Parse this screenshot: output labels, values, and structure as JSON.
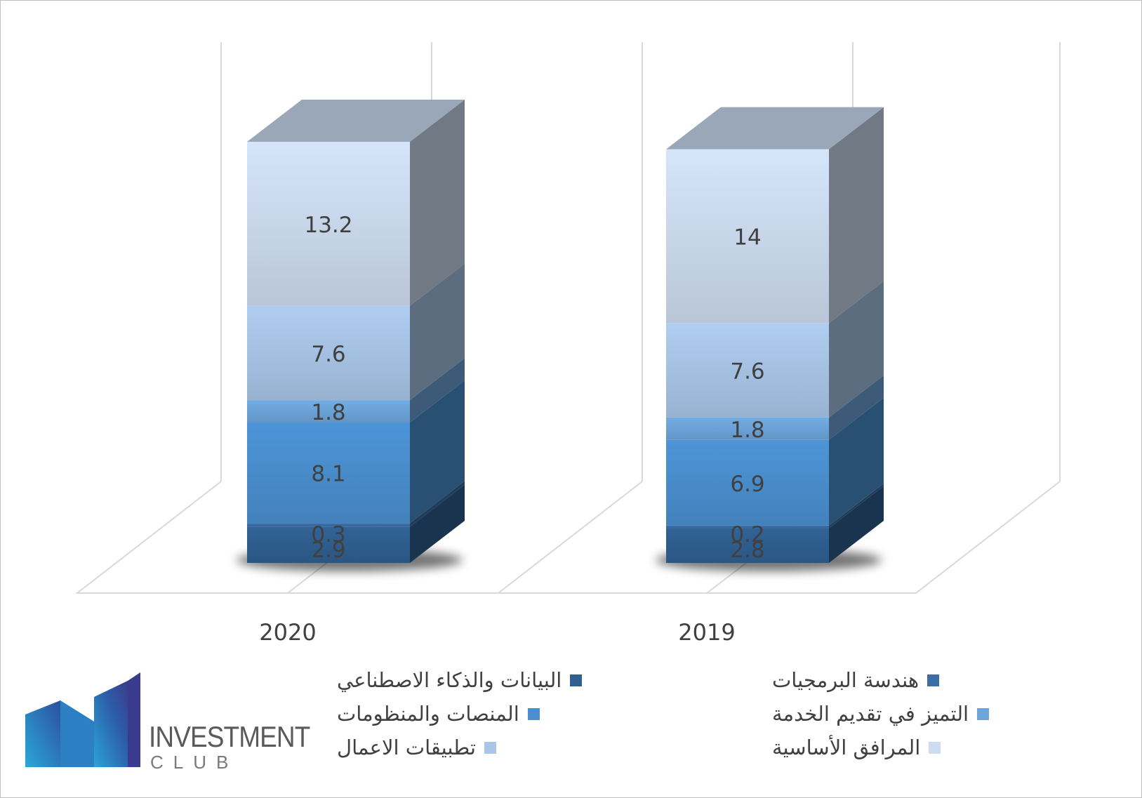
{
  "chart_data": {
    "type": "bar",
    "stacked": true,
    "three_d": true,
    "categories": [
      "2020",
      "2019"
    ],
    "series": [
      {
        "name": "البيانات والذكاء الاصطناعي",
        "values": [
          2.9,
          2.8
        ],
        "color": "#2f5f90"
      },
      {
        "name": "هندسة البرمجيات",
        "values": [
          0.3,
          0.2
        ],
        "color": "#3a6ea5"
      },
      {
        "name": "المنصات والمنظومات",
        "values": [
          8.1,
          6.9
        ],
        "color": "#4a8fd0"
      },
      {
        "name": "التميز في تقديم الخدمة",
        "values": [
          1.8,
          1.8
        ],
        "color": "#6ea6dc"
      },
      {
        "name": "تطبيقات الاعمال",
        "values": [
          7.6,
          7.6
        ],
        "color": "#a9c6e8"
      },
      {
        "name": "المرافق الأساسية",
        "values": [
          13.2,
          14
        ],
        "color": "#cddcf0"
      }
    ],
    "value_labels": [
      [
        "2.9",
        "0.3",
        "8.1",
        "1.8",
        "7.6",
        "13.2"
      ],
      [
        "2.8",
        "0.2",
        "6.9",
        "1.8",
        "7.6",
        "14"
      ]
    ],
    "grid": true,
    "legend_position": "bottom"
  },
  "logo": {
    "word": "INVESTMENT",
    "sub": "CLUB"
  }
}
